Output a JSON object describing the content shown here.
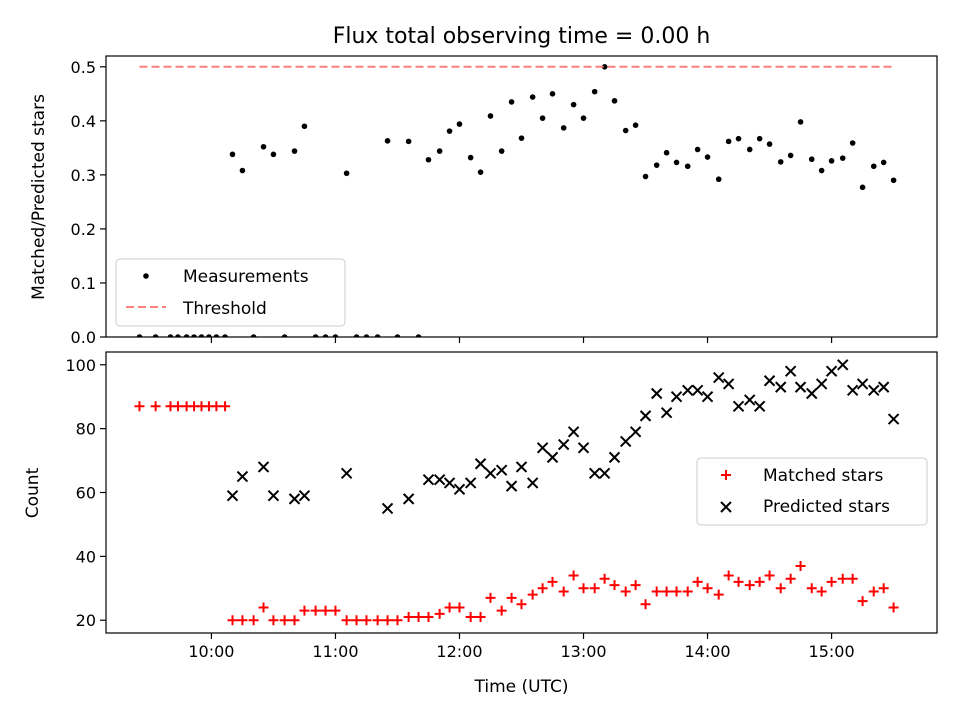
{
  "chart_data": [
    {
      "type": "scatter",
      "title": "Flux total observing time = 0.00 h",
      "ylabel": "Matched/Predicted stars",
      "xlim": [
        9.15,
        15.85
      ],
      "ylim": [
        0,
        0.52
      ],
      "x_ticks": [
        10,
        11,
        12,
        13,
        14,
        15
      ],
      "y_ticks": [
        0.0,
        0.1,
        0.2,
        0.3,
        0.4,
        0.5
      ],
      "y_tick_labels": [
        "0.0",
        "0.1",
        "0.2",
        "0.3",
        "0.4",
        "0.5"
      ],
      "legend": {
        "position": "lower-left",
        "entries": [
          "Measurements",
          "Threshold"
        ]
      },
      "series": [
        {
          "name": "Measurements",
          "color": "#000000",
          "x": [
            9.42,
            9.55,
            9.67,
            9.73,
            9.8,
            9.86,
            9.92,
            9.98,
            10.04,
            10.11,
            10.17,
            10.25,
            10.34,
            10.42,
            10.5,
            10.59,
            10.67,
            10.75,
            10.84,
            10.92,
            11.0,
            11.09,
            11.17,
            11.25,
            11.34,
            11.42,
            11.5,
            11.59,
            11.67,
            11.75,
            11.84,
            11.92,
            12.0,
            12.09,
            12.17,
            12.25,
            12.34,
            12.42,
            12.5,
            12.59,
            12.67,
            12.75,
            12.84,
            12.92,
            13.0,
            13.09,
            13.17,
            13.25,
            13.34,
            13.42,
            13.5,
            13.59,
            13.67,
            13.75,
            13.84,
            13.92,
            14.0,
            14.09,
            14.17,
            14.25,
            14.34,
            14.42,
            14.5,
            14.59,
            14.67,
            14.75,
            14.84,
            14.92,
            15.0,
            15.09,
            15.17,
            15.25,
            15.34,
            15.42,
            15.5
          ],
          "y": [
            0,
            0,
            0,
            0,
            0,
            0,
            0,
            0,
            0,
            0,
            0.338,
            0.308,
            0,
            0.352,
            0.338,
            0,
            0.344,
            0.39,
            0,
            0,
            0,
            0.303,
            0,
            0,
            0,
            0.363,
            0,
            0.362,
            0,
            0.328,
            0.344,
            0.381,
            0.394,
            0.332,
            0.305,
            0.409,
            0.344,
            0.435,
            0.368,
            0.444,
            0.405,
            0.45,
            0.387,
            0.43,
            0.405,
            0.454,
            0.5,
            0.437,
            0.382,
            0.392,
            0.297,
            0.318,
            0.341,
            0.323,
            0.316,
            0.347,
            0.333,
            0.292,
            0.362,
            0.367,
            0.347,
            0.367,
            0.357,
            0.324,
            0.336,
            0.398,
            0.329,
            0.308,
            0.326,
            0.331,
            0.359,
            0.277,
            0.316,
            0.323,
            0.29
          ]
        },
        {
          "name": "Threshold",
          "color": "#ff7f7f",
          "x": [
            9.42,
            15.5
          ],
          "y": [
            0.5,
            0.5
          ]
        }
      ]
    },
    {
      "type": "scatter",
      "xlabel": "Time (UTC)",
      "ylabel": "Count",
      "xlim": [
        9.15,
        15.85
      ],
      "ylim": [
        16,
        104
      ],
      "x_ticks": [
        10,
        11,
        12,
        13,
        14,
        15
      ],
      "x_tick_labels": [
        "10:00",
        "11:00",
        "12:00",
        "13:00",
        "14:00",
        "15:00"
      ],
      "y_ticks": [
        20,
        40,
        60,
        80,
        100
      ],
      "y_tick_labels": [
        "20",
        "40",
        "60",
        "80",
        "100"
      ],
      "legend": {
        "position": "center-right",
        "entries": [
          "Matched stars",
          "Predicted stars"
        ]
      },
      "series": [
        {
          "name": "Matched stars",
          "marker": "+",
          "color": "#ff0000",
          "x": [
            9.42,
            9.55,
            9.67,
            9.73,
            9.8,
            9.86,
            9.92,
            9.98,
            10.04,
            10.11,
            10.17,
            10.25,
            10.34,
            10.42,
            10.5,
            10.59,
            10.67,
            10.75,
            10.84,
            10.92,
            11.0,
            11.09,
            11.17,
            11.25,
            11.34,
            11.42,
            11.5,
            11.59,
            11.67,
            11.75,
            11.84,
            11.92,
            12.0,
            12.09,
            12.17,
            12.25,
            12.34,
            12.42,
            12.5,
            12.59,
            12.67,
            12.75,
            12.84,
            12.92,
            13.0,
            13.09,
            13.17,
            13.25,
            13.34,
            13.42,
            13.5,
            13.59,
            13.67,
            13.75,
            13.84,
            13.92,
            14.0,
            14.09,
            14.17,
            14.25,
            14.34,
            14.42,
            14.5,
            14.59,
            14.67,
            14.75,
            14.84,
            14.92,
            15.0,
            15.09,
            15.17,
            15.25,
            15.34,
            15.42,
            15.5
          ],
          "y": [
            87,
            87,
            87,
            87,
            87,
            87,
            87,
            87,
            87,
            87,
            20,
            20,
            20,
            24,
            20,
            20,
            20,
            23,
            23,
            23,
            23,
            20,
            20,
            20,
            20,
            20,
            20,
            21,
            21,
            21,
            22,
            24,
            24,
            21,
            21,
            27,
            23,
            27,
            25,
            28,
            30,
            32,
            29,
            34,
            30,
            30,
            33,
            31,
            29,
            31,
            25,
            29,
            29,
            29,
            29,
            32,
            30,
            28,
            34,
            32,
            31,
            32,
            34,
            30,
            33,
            37,
            30,
            29,
            32,
            33,
            33,
            26,
            29,
            30,
            24
          ]
        },
        {
          "name": "Predicted stars",
          "marker": "x",
          "color": "#000000",
          "x": [
            10.17,
            10.25,
            10.42,
            10.5,
            10.67,
            10.75,
            11.09,
            11.42,
            11.59,
            11.75,
            11.84,
            11.92,
            12.0,
            12.09,
            12.17,
            12.25,
            12.34,
            12.42,
            12.5,
            12.59,
            12.67,
            12.75,
            12.84,
            12.92,
            13.0,
            13.09,
            13.17,
            13.25,
            13.34,
            13.42,
            13.5,
            13.59,
            13.67,
            13.75,
            13.84,
            13.92,
            14.0,
            14.09,
            14.17,
            14.25,
            14.34,
            14.42,
            14.5,
            14.59,
            14.67,
            14.75,
            14.84,
            14.92,
            15.0,
            15.09,
            15.17,
            15.25,
            15.34,
            15.42,
            15.5
          ],
          "y": [
            59,
            65,
            68,
            59,
            58,
            59,
            66,
            55,
            58,
            64,
            64,
            63,
            61,
            63,
            69,
            66,
            67,
            62,
            68,
            63,
            74,
            71,
            75,
            79,
            74,
            66,
            66,
            71,
            76,
            79,
            84,
            91,
            85,
            90,
            92,
            92,
            90,
            96,
            94,
            87,
            89,
            87,
            95,
            93,
            98,
            93,
            91,
            94,
            98,
            100,
            92,
            94,
            92,
            93,
            83
          ]
        }
      ]
    }
  ]
}
